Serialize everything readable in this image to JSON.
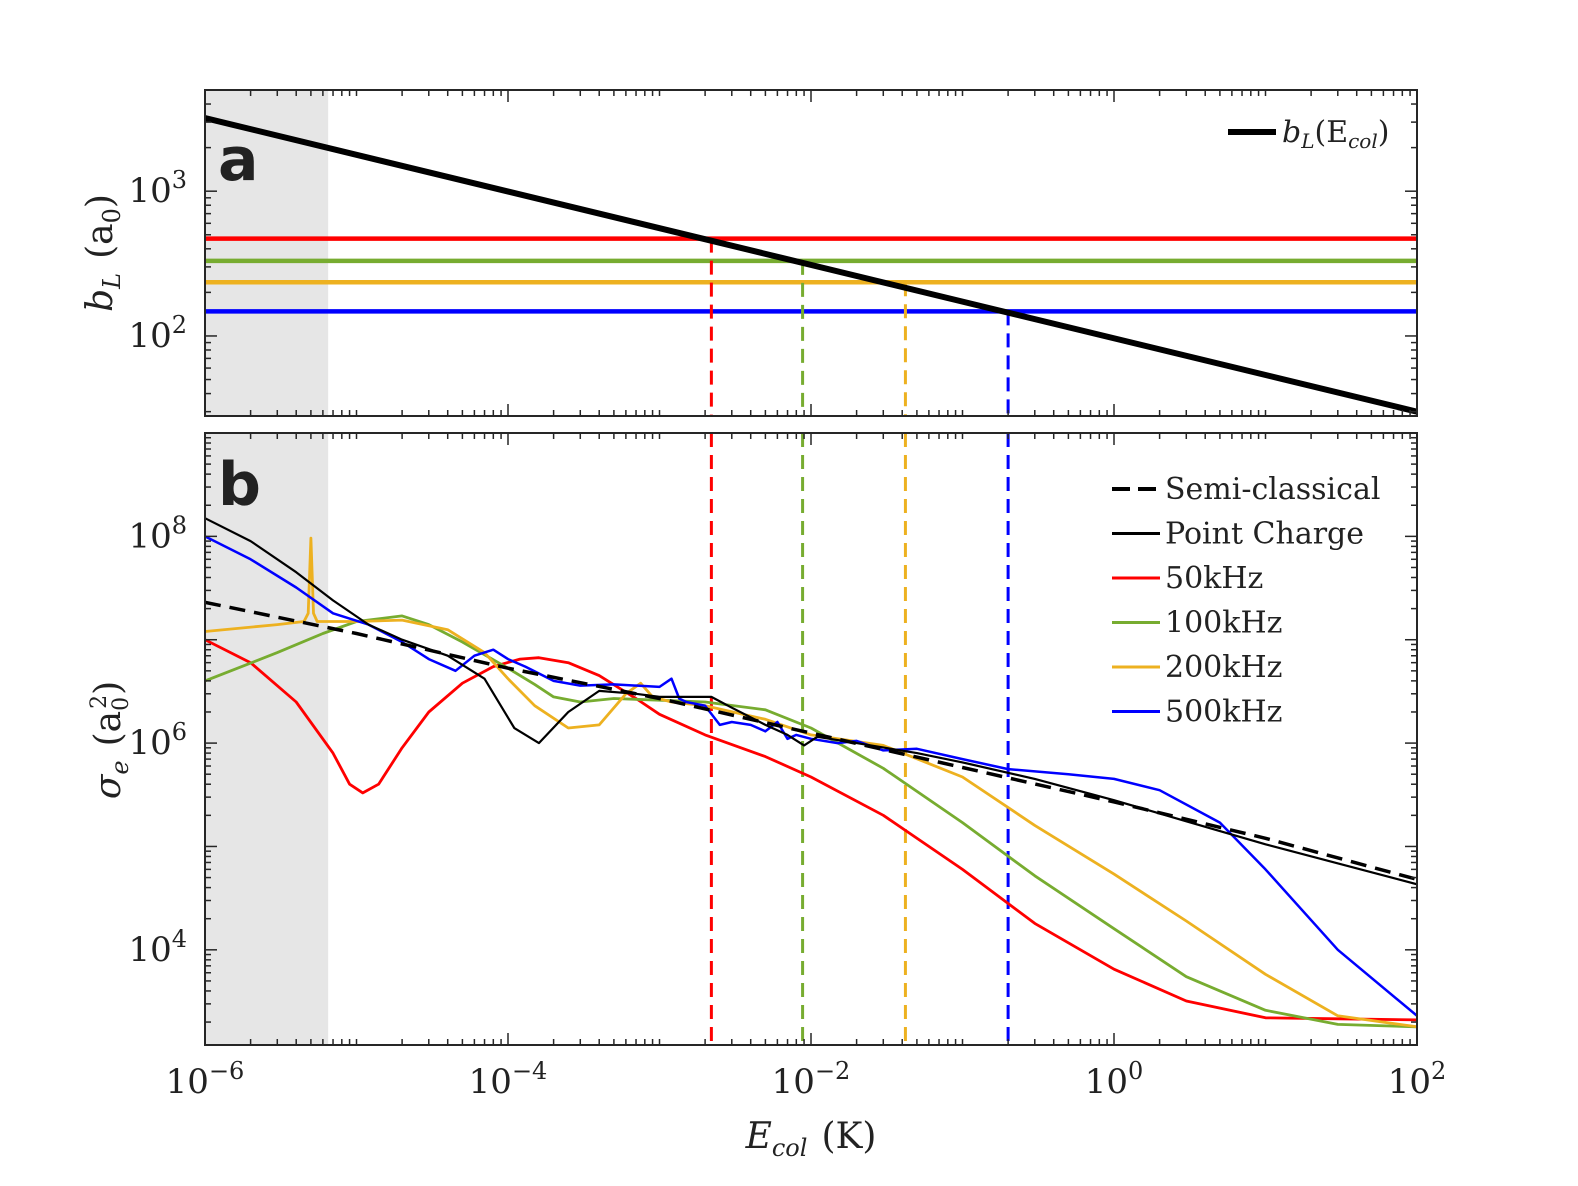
{
  "chart_data": [
    {
      "panel": "a",
      "type": "line",
      "x_scale": "log",
      "y_scale": "log",
      "xlim": [
        1e-06,
        100
      ],
      "ylim": [
        28,
        5000
      ],
      "ylabel": "b_L (a_0)",
      "yticks": [
        {
          "value": 100,
          "label": "10",
          "exp": "2"
        },
        {
          "value": 1000,
          "label": "10",
          "exp": "3"
        }
      ],
      "shaded_region": {
        "x_from": 1e-06,
        "x_to": 6.5e-06,
        "color": "#e6e6e6"
      },
      "series": [
        {
          "name": "b_L(E_col)",
          "legend_label": "b",
          "legend_sub": "L",
          "legend_arg": "(E",
          "legend_arg_sub": "col",
          "legend_close": ")",
          "color": "#000000",
          "x": [
            1e-06,
            100
          ],
          "y": [
            3200,
            30
          ]
        }
      ],
      "horizontal_lines": [
        {
          "name": "50kHz",
          "color": "#ff0000",
          "y": 470
        },
        {
          "name": "100kHz",
          "color": "#77ac30",
          "y": 330
        },
        {
          "name": "200kHz",
          "color": "#edb120",
          "y": 235
        },
        {
          "name": "500kHz",
          "color": "#0000ff",
          "y": 148
        }
      ],
      "crossings": [
        {
          "name": "50kHz",
          "color": "#ff0000",
          "x": 0.0022,
          "y": 470
        },
        {
          "name": "100kHz",
          "color": "#77ac30",
          "x": 0.0088,
          "y": 330
        },
        {
          "name": "200kHz",
          "color": "#edb120",
          "x": 0.042,
          "y": 235
        },
        {
          "name": "500kHz",
          "color": "#0000ff",
          "x": 0.2,
          "y": 148
        }
      ]
    },
    {
      "panel": "b",
      "type": "line",
      "x_scale": "log",
      "y_scale": "log",
      "xlim": [
        1e-06,
        100
      ],
      "ylim": [
        1200,
        1000000000.0
      ],
      "xlabel": "E_col (K)",
      "ylabel": "σ_e (a_0^2)",
      "xticks": [
        {
          "value": 1e-06,
          "label": "10",
          "exp": "−6"
        },
        {
          "value": 0.0001,
          "label": "10",
          "exp": "−4"
        },
        {
          "value": 0.01,
          "label": "10",
          "exp": "−2"
        },
        {
          "value": 1,
          "label": "10",
          "exp": "0"
        },
        {
          "value": 100,
          "label": "10",
          "exp": "2"
        }
      ],
      "yticks": [
        {
          "value": 10000,
          "label": "10",
          "exp": "4"
        },
        {
          "value": 1000000,
          "label": "10",
          "exp": "6"
        },
        {
          "value": 100000000,
          "label": "10",
          "exp": "8"
        }
      ],
      "shaded_region": {
        "x_from": 1e-06,
        "x_to": 6.5e-06,
        "color": "#e6e6e6"
      },
      "series": [
        {
          "name": "Semi-classical",
          "color": "#000000",
          "dash": true,
          "width": 3.5,
          "x": [
            1e-06,
            1e-05,
            0.0001,
            0.001,
            0.01,
            0.1,
            1,
            10,
            100
          ],
          "y": [
            23000000,
            11500000,
            5300000,
            2700000,
            1250000,
            580000,
            270000,
            120000,
            48000
          ]
        },
        {
          "name": "Point Charge",
          "color": "#000000",
          "dash": false,
          "width": 2.2,
          "x": [
            1e-06,
            2e-06,
            4e-06,
            7e-06,
            1.2e-05,
            2e-05,
            4e-05,
            7e-05,
            0.00011,
            0.00016,
            0.00025,
            0.0004,
            0.0007,
            0.001,
            0.0015,
            0.0022,
            0.003,
            0.005,
            0.007,
            0.009,
            0.011,
            0.02,
            0.05,
            0.1,
            0.3,
            1,
            3,
            10,
            100
          ],
          "y": [
            150000000,
            90000000,
            45000000,
            24000000,
            14000000,
            10000000,
            7000000,
            4200000,
            1400000,
            1000000,
            2000000,
            3200000,
            3000000,
            2800000,
            2800000,
            2800000,
            2200000,
            1500000,
            1200000,
            950000,
            1150000,
            1000000,
            800000,
            650000,
            450000,
            280000,
            175000,
            105000,
            43000
          ]
        },
        {
          "name": "50kHz",
          "color": "#ff0000",
          "dash": false,
          "width": 2.8,
          "x": [
            1e-06,
            2e-06,
            4e-06,
            7e-06,
            9e-06,
            1.1e-05,
            1.4e-05,
            2e-05,
            3e-05,
            5e-05,
            8e-05,
            0.00012,
            0.00016,
            0.00025,
            0.0004,
            0.0007,
            0.001,
            0.002,
            0.005,
            0.01,
            0.03,
            0.1,
            0.3,
            1,
            3,
            10,
            30,
            100
          ],
          "y": [
            10000000,
            6000000,
            2500000,
            800000,
            400000,
            330000,
            400000,
            900000,
            2000000,
            3800000,
            5500000,
            6500000,
            6700000,
            6000000,
            4500000,
            2700000,
            1900000,
            1200000,
            740000,
            470000,
            200000,
            60000,
            18000,
            6500,
            3200,
            2200,
            2150,
            2100
          ]
        },
        {
          "name": "100kHz",
          "color": "#77ac30",
          "dash": false,
          "width": 2.8,
          "x": [
            1e-06,
            3e-06,
            6e-06,
            1e-05,
            2e-05,
            3e-05,
            5e-05,
            0.0001,
            0.00015,
            0.0002,
            0.0003,
            0.0005,
            0.001,
            0.002,
            0.005,
            0.01,
            0.03,
            0.1,
            0.3,
            1,
            3,
            10,
            30,
            100
          ],
          "y": [
            4000000,
            7500000,
            11500000,
            15000000,
            17000000,
            14000000,
            9500000,
            5300000,
            3700000,
            2800000,
            2500000,
            2700000,
            2600000,
            2500000,
            2100000,
            1400000,
            570000,
            170000,
            52000,
            16000,
            5500,
            2600,
            1900,
            1800
          ]
        },
        {
          "name": "200kHz",
          "color": "#edb120",
          "dash": false,
          "width": 2.8,
          "x": [
            1e-06,
            3e-06,
            4.5e-06,
            4.8e-06,
            5e-06,
            5.2e-06,
            5.5e-06,
            7e-06,
            1e-05,
            2e-05,
            4e-05,
            7e-05,
            0.0001,
            0.00015,
            0.00025,
            0.0004,
            0.0006,
            0.00075,
            0.0009,
            0.0012,
            0.002,
            0.005,
            0.01,
            0.03,
            0.1,
            0.3,
            1,
            3,
            10,
            30,
            100
          ],
          "y": [
            12000000,
            14000000,
            15000000,
            18000000,
            96000000,
            18000000,
            15000000,
            15000000,
            15000000,
            15500000,
            12500000,
            7500000,
            4200000,
            2300000,
            1400000,
            1500000,
            3000000,
            3800000,
            2800000,
            2500000,
            2300000,
            1700000,
            1200000,
            950000,
            470000,
            160000,
            54000,
            19000,
            5800,
            2300,
            1800
          ]
        },
        {
          "name": "500kHz",
          "color": "#0000ff",
          "dash": false,
          "width": 2.5,
          "x": [
            1e-06,
            2e-06,
            4e-06,
            7e-06,
            1.2e-05,
            2e-05,
            3e-05,
            4.5e-05,
            6e-05,
            8e-05,
            0.0001,
            0.00013,
            0.0002,
            0.0003,
            0.0005,
            0.001,
            0.0012,
            0.00135,
            0.0015,
            0.002,
            0.0025,
            0.003,
            0.004,
            0.005,
            0.006,
            0.007,
            0.008,
            0.01,
            0.015,
            0.02,
            0.03,
            0.05,
            0.1,
            0.2,
            0.5,
            1,
            2,
            5,
            10,
            30,
            100
          ],
          "y": [
            100000000,
            60000000,
            32000000,
            18000000,
            14000000,
            9500000,
            6500000,
            5000000,
            7000000,
            8000000,
            6500000,
            5500000,
            4000000,
            3600000,
            3700000,
            3500000,
            4200000,
            2700000,
            2500000,
            2300000,
            1500000,
            1600000,
            1500000,
            1300000,
            1600000,
            1100000,
            1200000,
            1100000,
            1000000,
            1050000,
            850000,
            880000,
            700000,
            560000,
            500000,
            450000,
            350000,
            170000,
            60000,
            10000,
            2300
          ]
        }
      ],
      "vertical_lines": [
        {
          "name": "50kHz",
          "color": "#ff0000",
          "x": 0.0022
        },
        {
          "name": "100kHz",
          "color": "#77ac30",
          "x": 0.0088
        },
        {
          "name": "200kHz",
          "color": "#edb120",
          "x": 0.042
        },
        {
          "name": "500kHz",
          "color": "#0000ff",
          "x": 0.2
        }
      ],
      "legend": {
        "placement": "top-right",
        "entries": [
          {
            "label": "Semi-classical",
            "color": "#000000",
            "dash": true
          },
          {
            "label": "Point Charge",
            "color": "#000000",
            "dash": false
          },
          {
            "label": "50kHz",
            "color": "#ff0000",
            "dash": false
          },
          {
            "label": "100kHz",
            "color": "#77ac30",
            "dash": false
          },
          {
            "label": "200kHz",
            "color": "#edb120",
            "dash": false
          },
          {
            "label": "500kHz",
            "color": "#0000ff",
            "dash": false
          }
        ]
      }
    }
  ],
  "labels": {
    "panel_a": "a",
    "panel_b": "b",
    "xlabel_main": "E",
    "xlabel_sub": "col",
    "xlabel_unit": "(K)",
    "ylabel_a_main": "b",
    "ylabel_a_sub": "L",
    "ylabel_a_unit": "(a",
    "ylabel_a_unit_sub": "0",
    "ylabel_a_close": ")",
    "ylabel_b_main": "σ",
    "ylabel_b_sub": "e",
    "ylabel_b_unit": "(a",
    "ylabel_b_unit_sub": "0",
    "ylabel_b_unit_sup": "2",
    "ylabel_b_close": ")"
  }
}
